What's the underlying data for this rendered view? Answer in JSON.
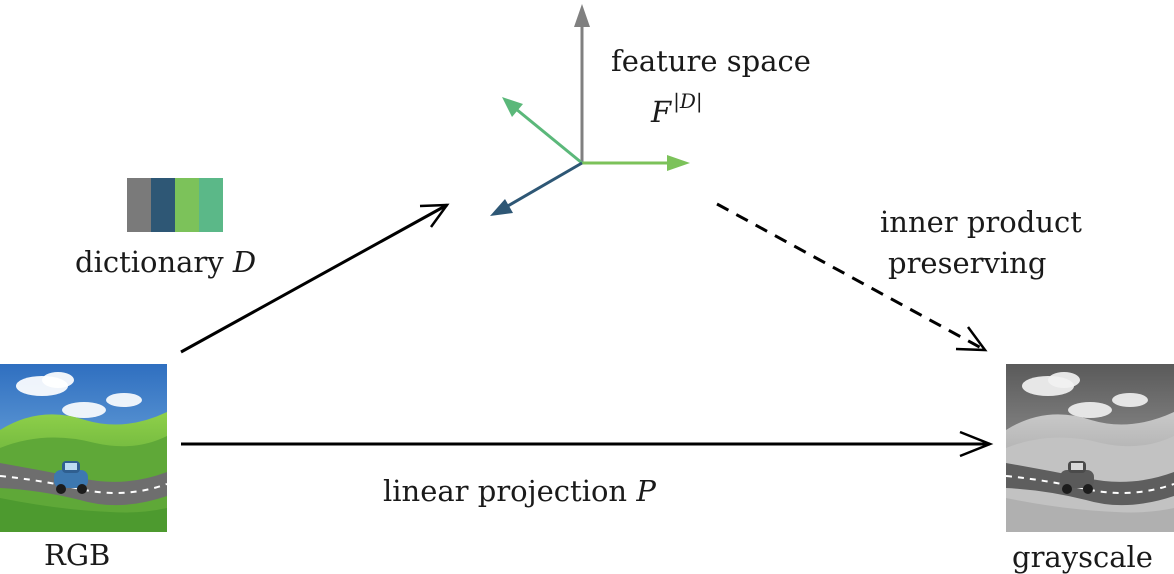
{
  "labels": {
    "feature_space": "feature space",
    "feature_symbol": "F",
    "feature_exponent": "|D|",
    "dictionary_word": "dictionary",
    "dictionary_symbol": "D",
    "inner_product_line1": "inner product",
    "inner_product_line2": "preserving",
    "projection_word": "linear projection",
    "projection_symbol": "P",
    "rgb": "RGB",
    "grayscale": "grayscale"
  },
  "dictionary_colors": [
    "#7a7a7a",
    "#2e5775",
    "#7cc25a",
    "#5bb888"
  ],
  "axis_colors": {
    "vertical": "#808080",
    "horizontal": "#7cc25a",
    "upper_left": "#5bb87a",
    "lower_left": "#2e5775"
  },
  "arrow_color": "#000000"
}
